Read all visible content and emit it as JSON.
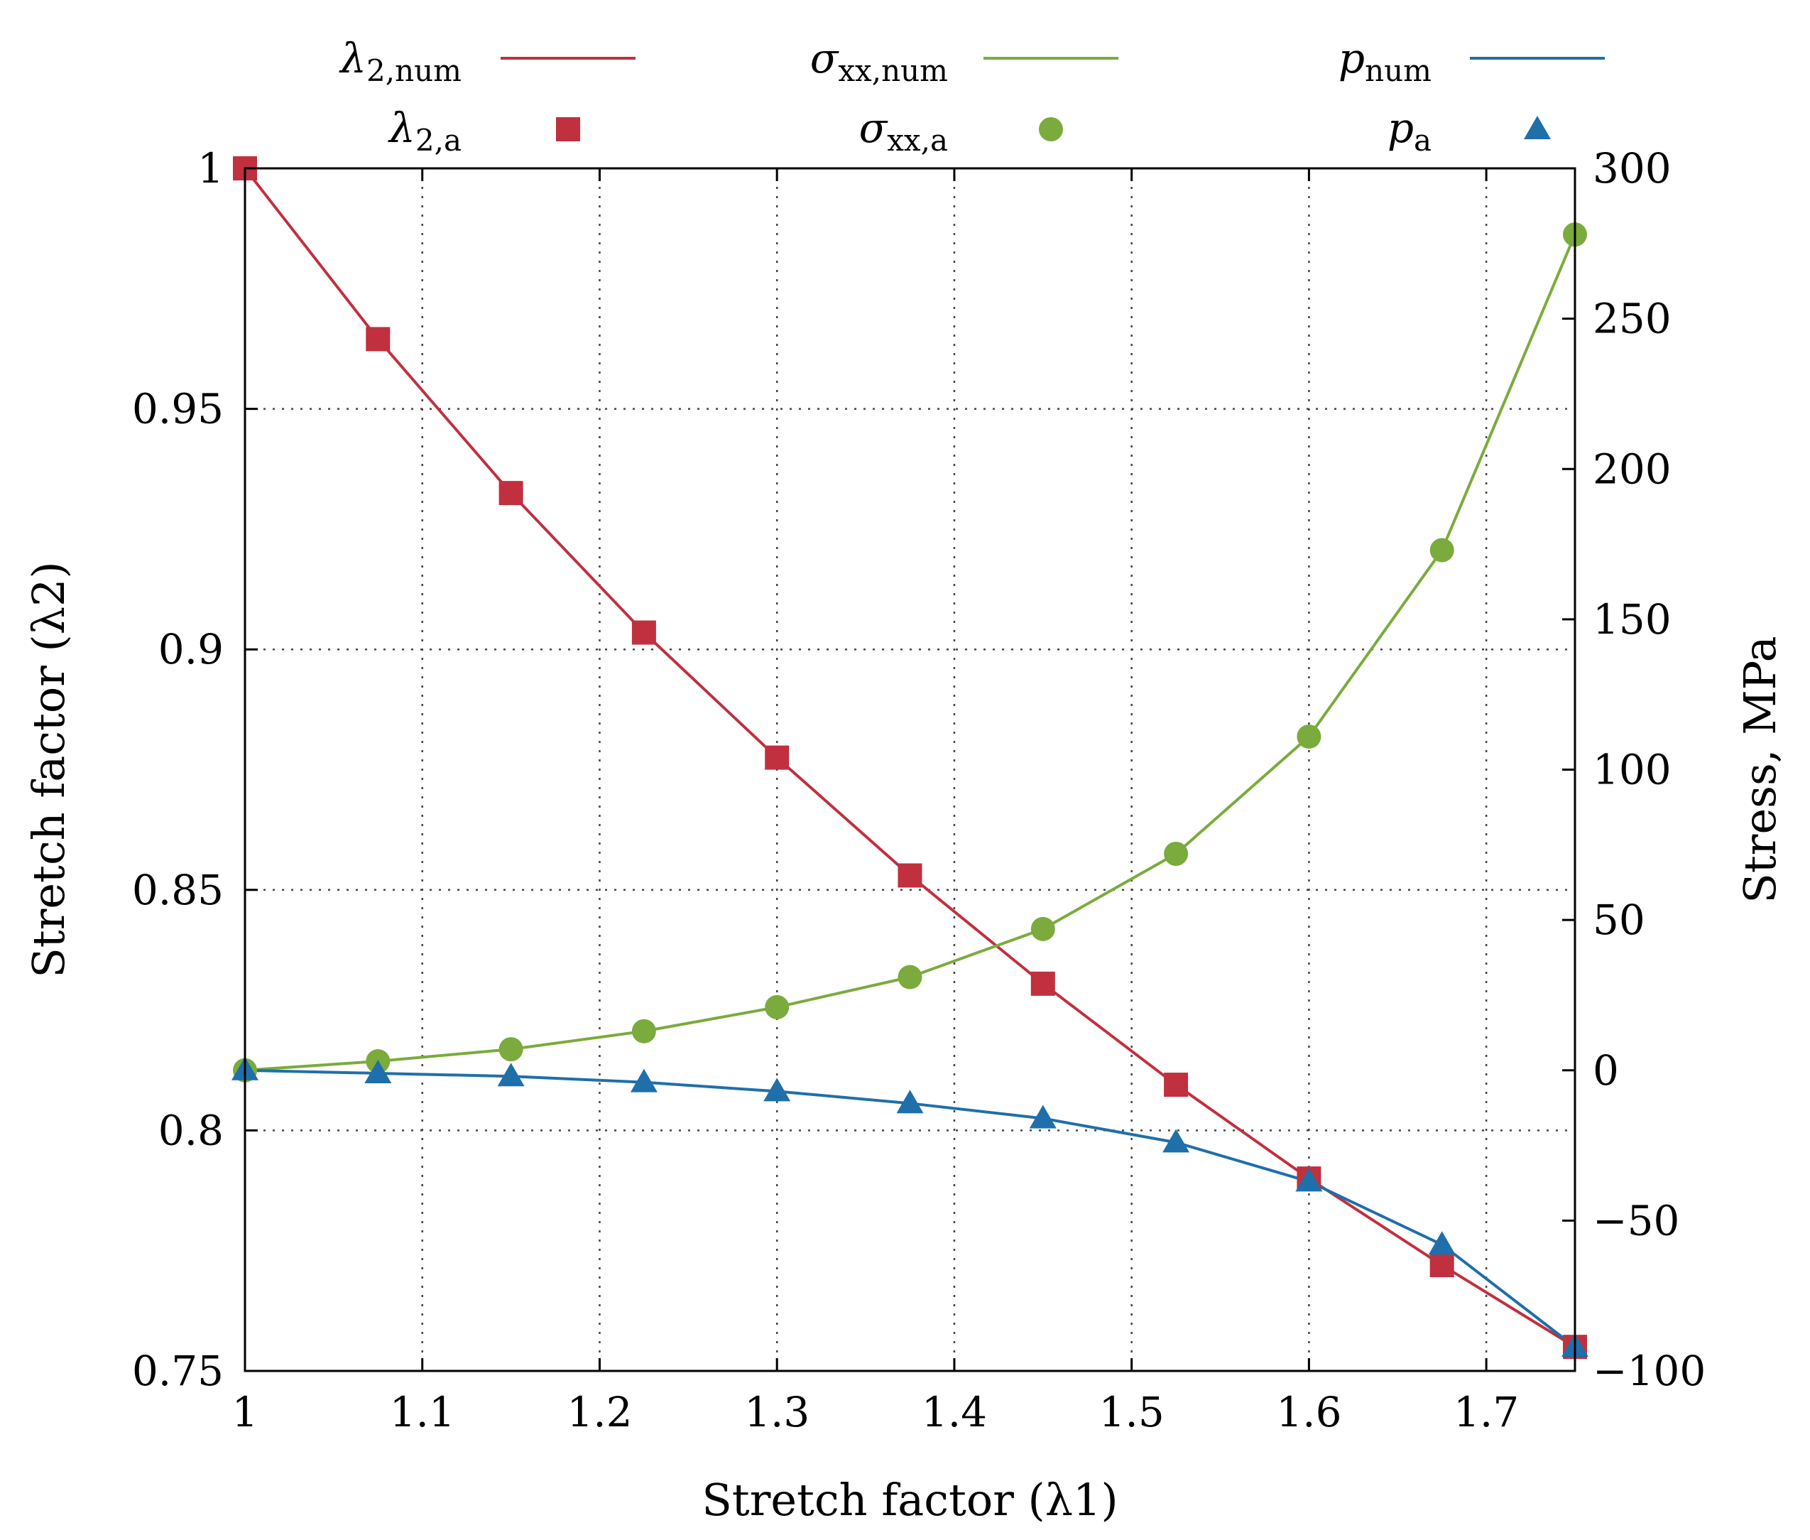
{
  "chart_data": {
    "type": "line",
    "xlabel": "Stretch factor (λ1)",
    "ylabel_left": "Stretch factor (λ2)",
    "ylabel_right": "Stress, MPa",
    "x_ticks": [
      "1",
      "1.1",
      "1.2",
      "1.3",
      "1.4",
      "1.5",
      "1.6",
      "1.7"
    ],
    "y_left_ticks": [
      "0.75",
      "0.8",
      "0.85",
      "0.9",
      "0.95",
      "1"
    ],
    "y_right_ticks": [
      "−100",
      "−50",
      "0",
      "50",
      "100",
      "150",
      "200",
      "250",
      "300"
    ],
    "xlim": [
      1.0,
      1.75
    ],
    "ylim_left": [
      0.75,
      1.0
    ],
    "ylim_right": [
      -100,
      300
    ],
    "grid": true,
    "legend_position": "top, above plot",
    "x": [
      1.0,
      1.075,
      1.15,
      1.225,
      1.3,
      1.375,
      1.45,
      1.525,
      1.6,
      1.675,
      1.75
    ],
    "series": [
      {
        "name": "λ2,num",
        "label_main": "λ",
        "label_sub": "2,num",
        "style": "line",
        "axis": "left",
        "color": "#c0303f",
        "values": [
          1.0,
          0.9645,
          0.9325,
          0.9035,
          0.8775,
          0.853,
          0.8305,
          0.8095,
          0.79,
          0.772,
          0.755
        ]
      },
      {
        "name": "λ2,a",
        "label_main": "λ",
        "label_sub": "2,a",
        "style": "marker-square",
        "axis": "left",
        "color": "#c0303f",
        "values": [
          1.0,
          0.9645,
          0.9325,
          0.9035,
          0.8775,
          0.853,
          0.8305,
          0.8095,
          0.79,
          0.772,
          0.755
        ]
      },
      {
        "name": "σxx,num",
        "label_main": "σ",
        "label_sub": "xx,num",
        "style": "line",
        "axis": "right",
        "color": "#7aab3c",
        "values": [
          0,
          3,
          7,
          13,
          21,
          31,
          47,
          72,
          111,
          173,
          278
        ]
      },
      {
        "name": "σxx,a",
        "label_main": "σ",
        "label_sub": "xx,a",
        "style": "marker-circle",
        "axis": "right",
        "color": "#7aab3c",
        "values": [
          0,
          3,
          7,
          13,
          21,
          31,
          47,
          72,
          111,
          173,
          278
        ]
      },
      {
        "name": "pnum",
        "label_main": "p",
        "label_sub": "num",
        "style": "line",
        "axis": "right",
        "color": "#1f6faa",
        "values": [
          0,
          -1,
          -2,
          -4,
          -7,
          -11,
          -16,
          -24,
          -37,
          -58,
          -92
        ]
      },
      {
        "name": "pa",
        "label_main": "p",
        "label_sub": "a",
        "style": "marker-triangle",
        "axis": "right",
        "color": "#1f6faa",
        "values": [
          0,
          -1,
          -2,
          -4,
          -7,
          -11,
          -16,
          -24,
          -37,
          -58,
          -92
        ]
      }
    ]
  }
}
